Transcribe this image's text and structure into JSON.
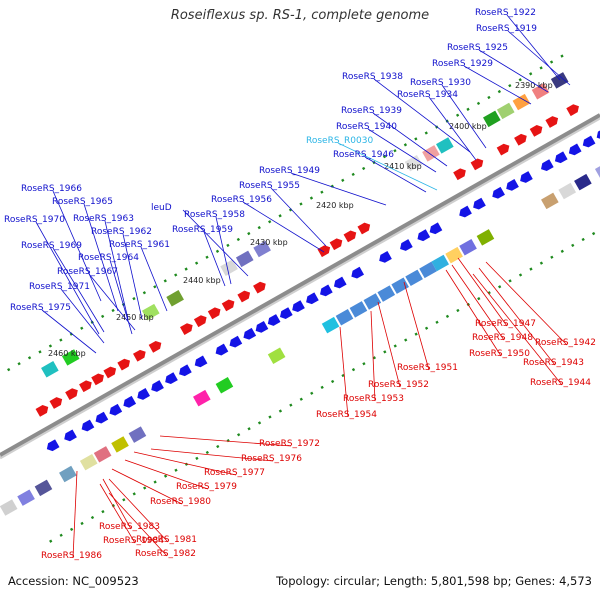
{
  "title": "Roseiflexus sp. RS-1, complete genome",
  "footer": {
    "accession": "Accession: NC_009523",
    "summary": "Topology: circular; Length: 5,801,598 bp; Genes: 4,573"
  },
  "colors": {
    "forward_label": "#1010cc",
    "reverse_label": "#dd0000",
    "rna_label": "#2bb5e6",
    "backbone": "#8c8c8c"
  },
  "ticks": [
    {
      "label": "2390 kbp"
    },
    {
      "label": "2400 kbp"
    },
    {
      "label": "2410 kbp"
    },
    {
      "label": "2420 kbp"
    },
    {
      "label": "2430 kbp"
    },
    {
      "label": "2440 kbp"
    },
    {
      "label": "2450 kbp"
    },
    {
      "label": "2460 kbp"
    }
  ],
  "forward_labels": [
    {
      "text": "RoseRS_1922"
    },
    {
      "text": "RoseRS_1919"
    },
    {
      "text": "RoseRS_1925"
    },
    {
      "text": "RoseRS_1929"
    },
    {
      "text": "RoseRS_1938"
    },
    {
      "text": "RoseRS_1930"
    },
    {
      "text": "RoseRS_1934"
    },
    {
      "text": "RoseRS_1939"
    },
    {
      "text": "RoseRS_1940"
    },
    {
      "text": "RoseRS_R0030"
    },
    {
      "text": "RoseRS_1946"
    },
    {
      "text": "RoseRS_1949"
    },
    {
      "text": "RoseRS_1955"
    },
    {
      "text": "RoseRS_1966"
    },
    {
      "text": "RoseRS_1956"
    },
    {
      "text": "RoseRS_1965"
    },
    {
      "text": "leuD"
    },
    {
      "text": "RoseRS_1958"
    },
    {
      "text": "RoseRS_1970"
    },
    {
      "text": "RoseRS_1963"
    },
    {
      "text": "RoseRS_1959"
    },
    {
      "text": "RoseRS_1962"
    },
    {
      "text": "RoseRS_1969"
    },
    {
      "text": "RoseRS_1961"
    },
    {
      "text": "RoseRS_1964"
    },
    {
      "text": "RoseRS_1967"
    },
    {
      "text": "RoseRS_1971"
    },
    {
      "text": "RoseRS_1975"
    }
  ],
  "reverse_labels": [
    {
      "text": "RoseRS_1947"
    },
    {
      "text": "RoseRS_1948"
    },
    {
      "text": "RoseRS_1942"
    },
    {
      "text": "RoseRS_1950"
    },
    {
      "text": "RoseRS_1943"
    },
    {
      "text": "RoseRS_1951"
    },
    {
      "text": "RoseRS_1944"
    },
    {
      "text": "RoseRS_1952"
    },
    {
      "text": "RoseRS_1953"
    },
    {
      "text": "RoseRS_1954"
    },
    {
      "text": "RoseRS_1972"
    },
    {
      "text": "RoseRS_1976"
    },
    {
      "text": "RoseRS_1977"
    },
    {
      "text": "RoseRS_1979"
    },
    {
      "text": "RoseRS_1980"
    },
    {
      "text": "RoseRS_1983"
    },
    {
      "text": "RoseRS_1984"
    },
    {
      "text": "RoseRS_1981"
    },
    {
      "text": "RoseRS_1986"
    },
    {
      "text": "RoseRS_1982"
    }
  ]
}
